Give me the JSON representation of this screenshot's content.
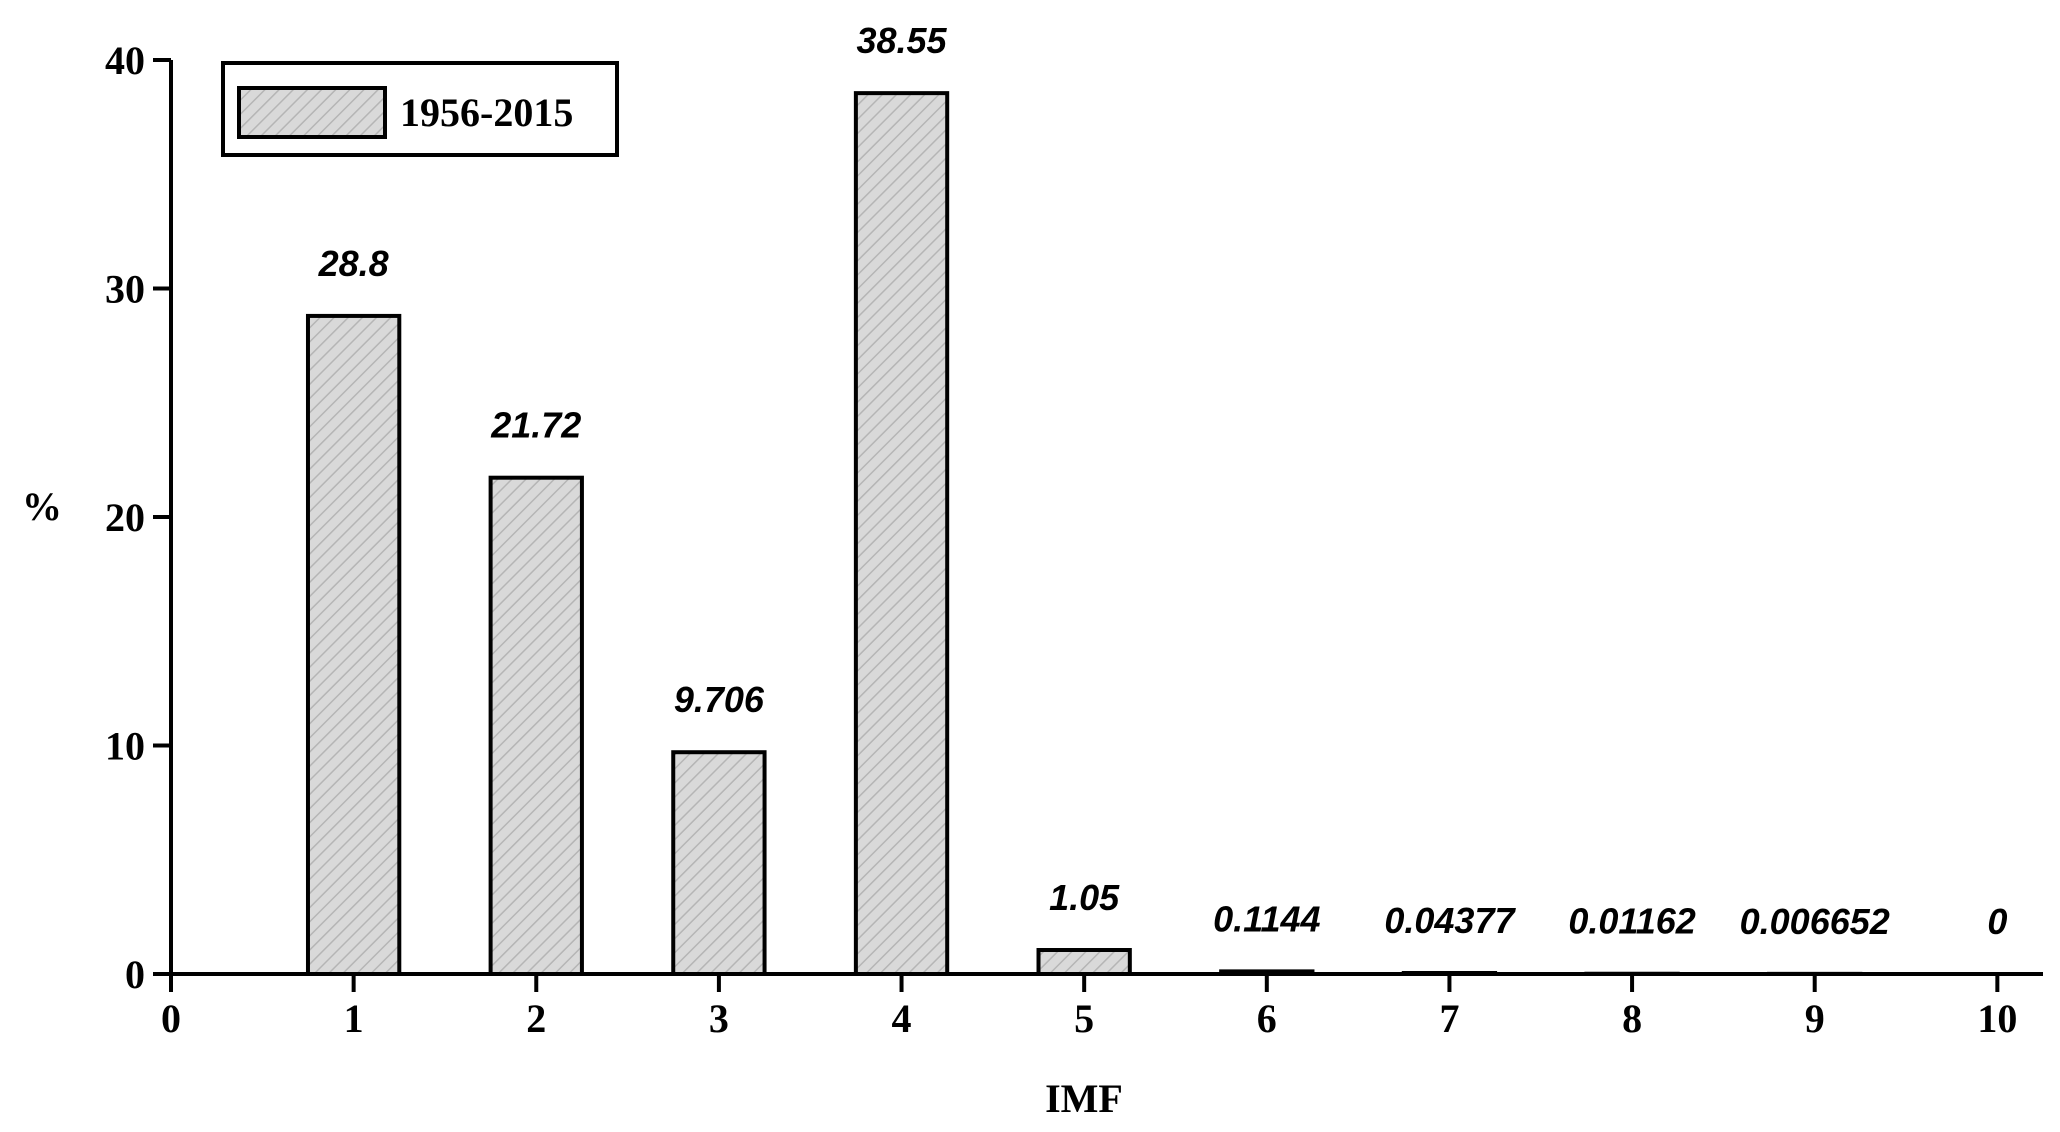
{
  "chart_data": {
    "type": "bar",
    "x_label": "IMF",
    "y_label": "%",
    "x": [
      1,
      2,
      3,
      4,
      5,
      6,
      7,
      8,
      9,
      10
    ],
    "series": [
      {
        "name": "1956-2015",
        "color": "#d9d9d9",
        "values": [
          28.8,
          21.72,
          9.706,
          38.55,
          1.05,
          0.1144,
          0.04377,
          0.01162,
          0.006652,
          0
        ]
      }
    ],
    "xlim": [
      0,
      10.25
    ],
    "xticks": [
      0,
      1,
      2,
      3,
      4,
      5,
      6,
      7,
      8,
      9,
      10
    ],
    "ylim": [
      0,
      40
    ],
    "yticks": [
      0,
      10,
      20,
      30,
      40
    ],
    "grid": false,
    "legend": "upper left"
  }
}
